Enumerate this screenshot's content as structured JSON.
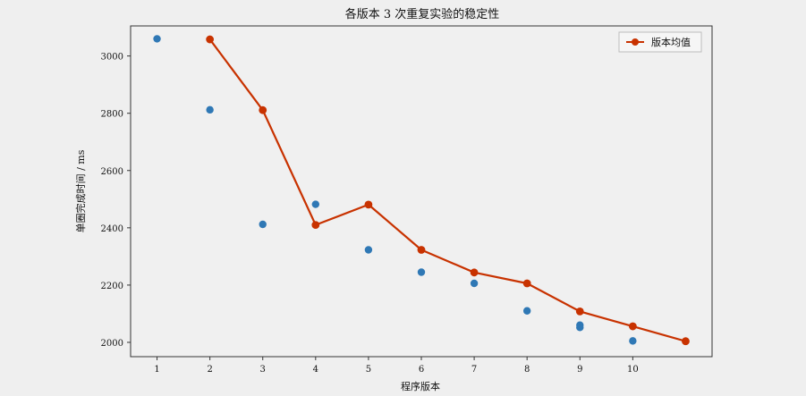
{
  "chart_data": {
    "type": "scatter",
    "title": "各版本 3 次重复实验的稳定性",
    "xlabel": "程序版本",
    "ylabel": "单圈完成时间 / ms",
    "x_ticks": [
      1,
      2,
      3,
      4,
      5,
      6,
      7,
      8,
      9,
      10
    ],
    "y_ticks": [
      2000,
      2200,
      2400,
      2600,
      2800,
      3000
    ],
    "xlim": [
      0.5,
      11.5
    ],
    "ylim": [
      1950,
      3105
    ],
    "grid": false,
    "legend_position": "top-right",
    "colors": {
      "scatter": "#2f78b5",
      "mean_line": "#c83200",
      "axes": "#333333",
      "background": "#f0f0f0"
    },
    "scatter_points": [
      {
        "x": 1,
        "y": 3060
      },
      {
        "x": 2,
        "y": 2812
      },
      {
        "x": 3,
        "y": 2412
      },
      {
        "x": 4,
        "y": 2482
      },
      {
        "x": 5,
        "y": 2323
      },
      {
        "x": 6,
        "y": 2245
      },
      {
        "x": 7,
        "y": 2206
      },
      {
        "x": 8,
        "y": 2110
      },
      {
        "x": 9,
        "y": 2060
      },
      {
        "x": 9,
        "y": 2052
      },
      {
        "x": 10,
        "y": 2005
      }
    ],
    "series": [
      {
        "name": "版本均值",
        "x": [
          2,
          3,
          4,
          5,
          6,
          7,
          8,
          9,
          10,
          11
        ],
        "values": [
          3058,
          2811,
          2410,
          2481,
          2323,
          2244,
          2206,
          2108,
          2056,
          2004
        ]
      }
    ]
  }
}
